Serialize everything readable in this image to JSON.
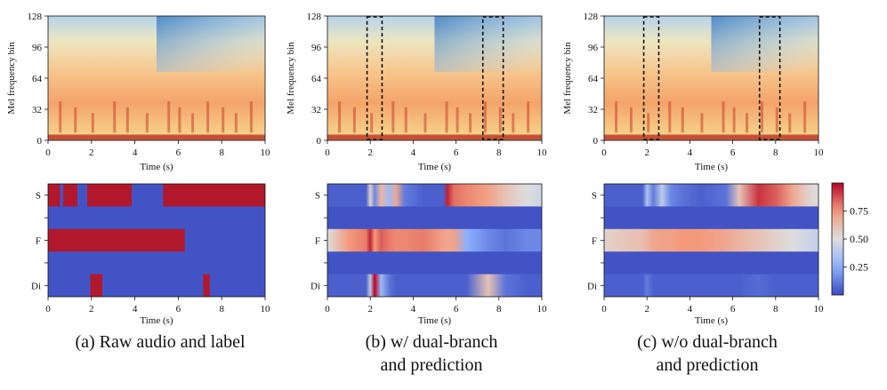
{
  "chart_data": [
    {
      "type": "heatmap",
      "panel": "a",
      "kind": "spectrogram",
      "xlabel": "Time (s)",
      "ylabel": "Mel frequency bin",
      "xlim": [
        0,
        10
      ],
      "ylim": [
        0,
        128
      ],
      "xticks": [
        0,
        2,
        4,
        6,
        8,
        10
      ],
      "yticks": [
        0,
        32,
        64,
        96,
        128
      ],
      "highlight_boxes": []
    },
    {
      "type": "heatmap",
      "panel": "a",
      "kind": "labels",
      "xlabel": "Time (s)",
      "xlim": [
        0,
        10
      ],
      "xticks": [
        0,
        2,
        4,
        6,
        8,
        10
      ],
      "rows": [
        "S",
        "F",
        "Di"
      ],
      "label_segments": {
        "S": [
          [
            0,
            0.55
          ],
          [
            0.7,
            1.35
          ],
          [
            1.8,
            3.85
          ],
          [
            5.3,
            10
          ]
        ],
        "F": [
          [
            0,
            6.3
          ]
        ],
        "Di": [
          [
            1.95,
            2.5
          ],
          [
            7.15,
            7.45
          ]
        ]
      }
    },
    {
      "type": "heatmap",
      "panel": "b",
      "kind": "spectrogram",
      "xlabel": "Time (s)",
      "ylabel": "Mel frequency bin",
      "xlim": [
        0,
        10
      ],
      "ylim": [
        0,
        128
      ],
      "xticks": [
        0,
        2,
        4,
        6,
        8,
        10
      ],
      "yticks": [
        0,
        32,
        64,
        96,
        128
      ],
      "highlight_boxes": [
        [
          1.85,
          2.55
        ],
        [
          7.25,
          8.2
        ]
      ]
    },
    {
      "type": "heatmap",
      "panel": "b",
      "kind": "prediction",
      "xlabel": "Time (s)",
      "xlim": [
        0,
        10
      ],
      "xticks": [
        0,
        2,
        4,
        6,
        8,
        10
      ],
      "rows": [
        "S",
        "F",
        "Di"
      ],
      "time_points": [
        0,
        1.0,
        1.8,
        2.0,
        2.2,
        2.5,
        2.9,
        3.2,
        3.6,
        4.5,
        5.4,
        5.6,
        5.9,
        6.5,
        7.5,
        8.3,
        9.3,
        10
      ],
      "S": [
        0.05,
        0.05,
        0.05,
        0.55,
        0.15,
        0.65,
        0.3,
        0.7,
        0.12,
        0.05,
        0.05,
        0.95,
        0.82,
        0.78,
        0.72,
        0.6,
        0.5,
        0.45
      ],
      "F": [
        0.5,
        0.75,
        0.8,
        0.95,
        0.75,
        0.85,
        0.8,
        0.78,
        0.78,
        0.8,
        0.72,
        0.7,
        0.72,
        0.25,
        0.15,
        0.1,
        0.15,
        0.15
      ],
      "Di": [
        0.05,
        0.05,
        0.05,
        0.4,
        1.0,
        0.3,
        0.1,
        0.05,
        0.05,
        0.05,
        0.05,
        0.05,
        0.05,
        0.05,
        0.6,
        0.1,
        0.05,
        0.05
      ]
    },
    {
      "type": "heatmap",
      "panel": "c",
      "kind": "spectrogram",
      "xlabel": "Time (s)",
      "ylabel": "Mel frequency bin",
      "xlim": [
        0,
        10
      ],
      "ylim": [
        0,
        128
      ],
      "xticks": [
        0,
        2,
        4,
        6,
        8,
        10
      ],
      "yticks": [
        0,
        32,
        64,
        96,
        128
      ],
      "highlight_boxes": [
        [
          1.85,
          2.55
        ],
        [
          7.25,
          8.2
        ]
      ]
    },
    {
      "type": "heatmap",
      "panel": "c",
      "kind": "prediction",
      "xlabel": "Time (s)",
      "xlim": [
        0,
        10
      ],
      "xticks": [
        0,
        2,
        4,
        6,
        8,
        10
      ],
      "rows": [
        "S",
        "F",
        "Di"
      ],
      "time_points": [
        0,
        1.8,
        2.0,
        2.3,
        2.7,
        3.1,
        3.6,
        4.5,
        5.7,
        6.3,
        7.2,
        8.0,
        8.8,
        9.5,
        10
      ],
      "S": [
        0.05,
        0.05,
        0.35,
        0.12,
        0.4,
        0.15,
        0.1,
        0.05,
        0.1,
        0.6,
        0.92,
        0.85,
        0.7,
        0.55,
        0.5
      ],
      "F": [
        0.55,
        0.62,
        0.65,
        0.7,
        0.72,
        0.72,
        0.75,
        0.75,
        0.7,
        0.65,
        0.6,
        0.55,
        0.5,
        0.45,
        0.42
      ],
      "Di": [
        0.05,
        0.05,
        0.12,
        0.05,
        0.05,
        0.05,
        0.05,
        0.05,
        0.05,
        0.05,
        0.08,
        0.05,
        0.05,
        0.05,
        0.05
      ]
    },
    {
      "type": "colorbar",
      "range": [
        0,
        1
      ],
      "ticks": [
        "0.25",
        "0.50",
        "0.75"
      ],
      "colormap": "coolwarm"
    }
  ],
  "captions": {
    "a": "(a) Raw audio and label",
    "b_line1": "(b) w/ dual-branch",
    "b_line2": "and prediction",
    "c_line1": "(c) w/o dual-branch",
    "c_line2": "and prediction"
  },
  "colors": {
    "label_on": "#b2182b",
    "label_off": "#3b4cc0",
    "box": "#111111"
  }
}
